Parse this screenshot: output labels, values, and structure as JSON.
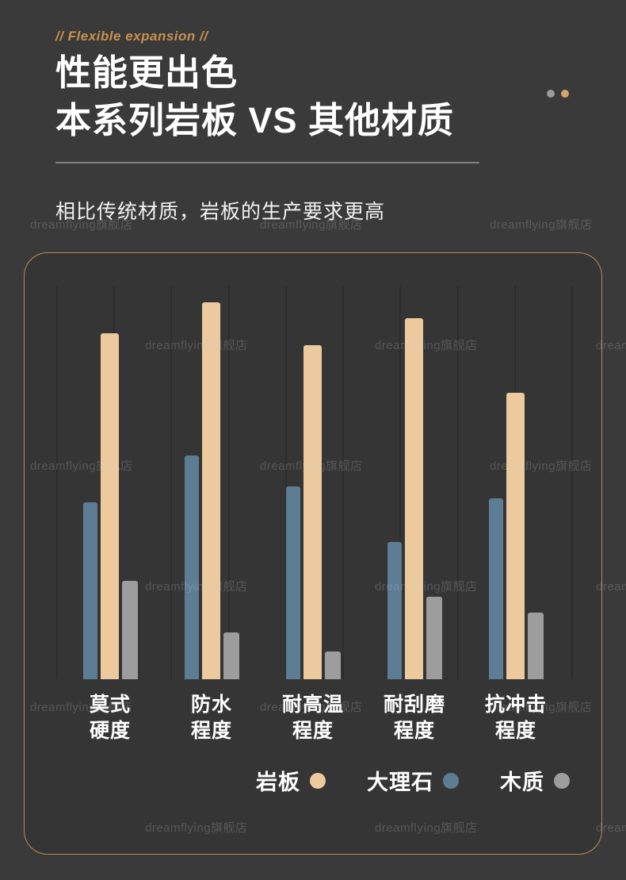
{
  "watermark": {
    "text": "dreamflying旗舰店"
  },
  "header": {
    "tagline": "// Flexible expansion //",
    "title_line1": "性能更出色",
    "title_line2": "本系列岩板 VS 其他材质",
    "subtitle": "相比传统材质，岩板的生产要求更高",
    "accent_color": "#c8914e",
    "dot_colors": [
      "#9a9a9a",
      "#d8a368"
    ]
  },
  "chart_data": {
    "type": "bar",
    "categories": [
      "莫式\n硬度",
      "防水\n程度",
      "耐高温\n程度",
      "耐刮磨\n程度",
      "抗冲击\n程度"
    ],
    "series": [
      {
        "name": "大理石",
        "color": "#5d7d95",
        "values": [
          45,
          57,
          49,
          35,
          46
        ]
      },
      {
        "name": "岩板",
        "color": "#edca9d",
        "values": [
          88,
          96,
          85,
          92,
          73
        ]
      },
      {
        "name": "木质",
        "color": "#9d9d9d",
        "values": [
          25,
          12,
          7,
          21,
          17
        ]
      }
    ],
    "ylim": [
      0,
      100
    ],
    "grid": {
      "vertical_lines": 10
    },
    "legend": {
      "position": "bottom-right",
      "entries": [
        {
          "label": "岩板",
          "color": "#edca9d"
        },
        {
          "label": "大理石",
          "color": "#5d7d95"
        },
        {
          "label": "木质",
          "color": "#9d9d9d"
        }
      ]
    }
  }
}
